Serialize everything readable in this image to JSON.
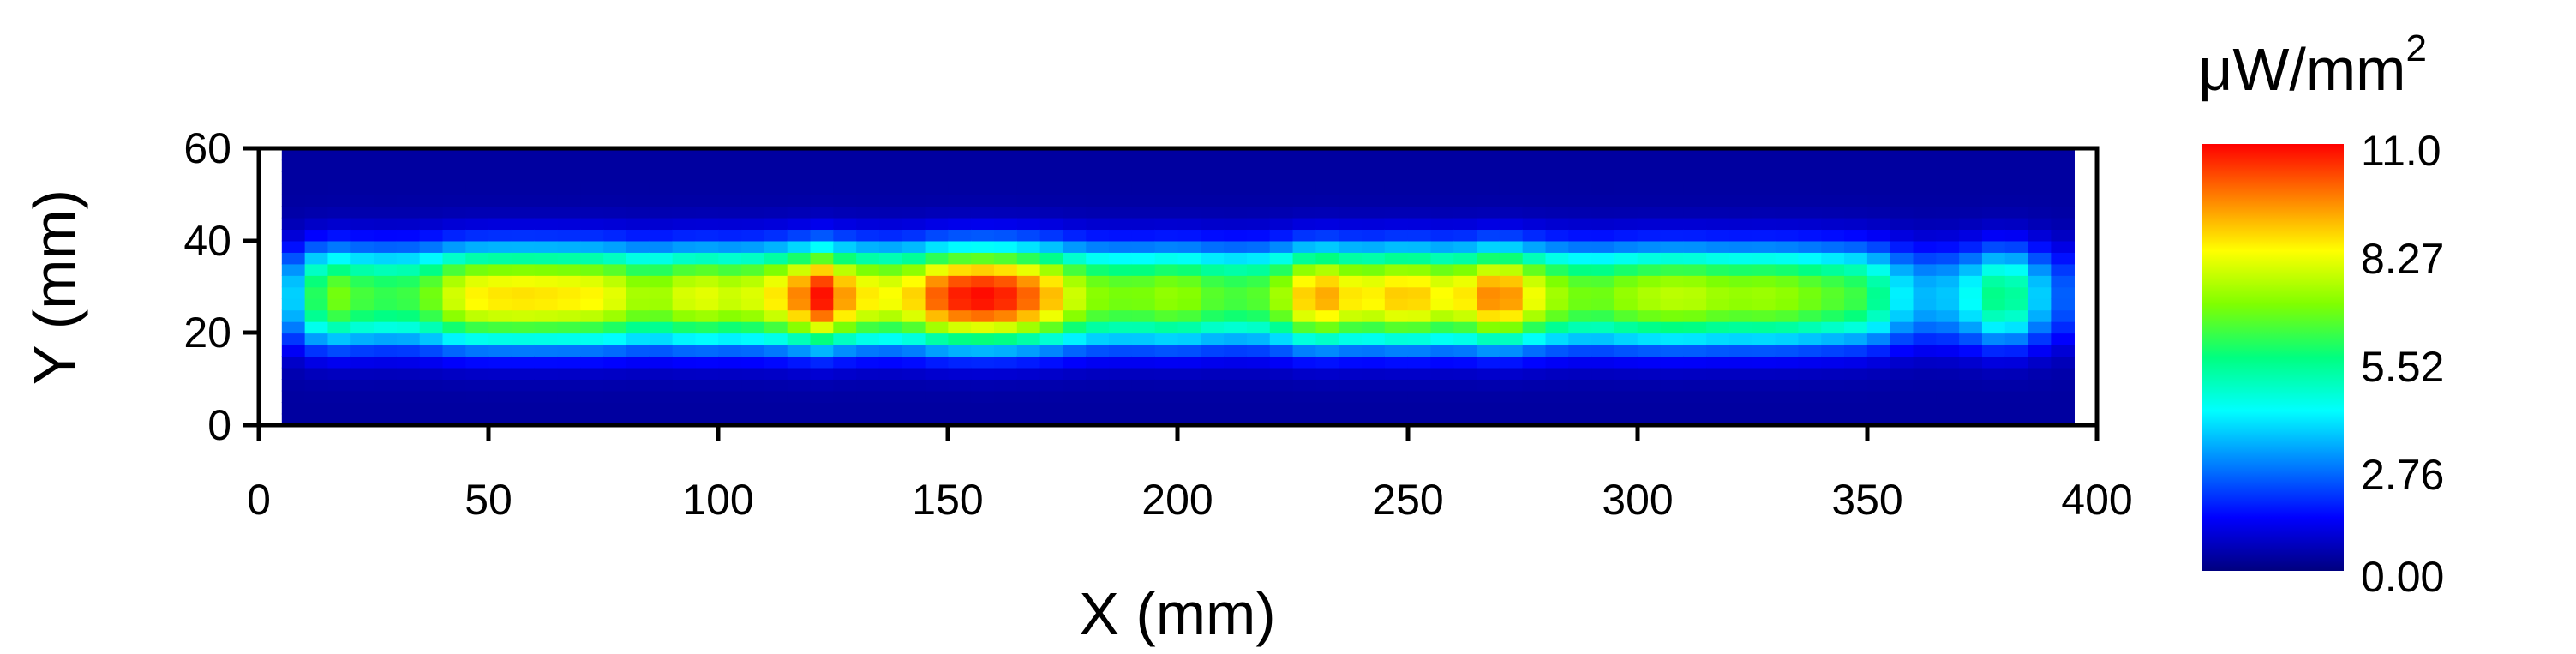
{
  "chart_data": {
    "type": "heatmap",
    "title": "",
    "xlabel": "X (mm)",
    "ylabel": "Y (mm)",
    "xlim": [
      0,
      400
    ],
    "ylim": [
      0,
      60
    ],
    "x_ticks": [
      "0",
      "50",
      "100",
      "150",
      "200",
      "250",
      "300",
      "350",
      "400"
    ],
    "y_ticks": [
      "0",
      "20",
      "40",
      "60"
    ],
    "colorbar": {
      "unit_base": "μW/mm",
      "unit_exponent": "2",
      "min": 0.0,
      "max": 11.0,
      "tick_labels": [
        "0.00",
        "2.76",
        "5.52",
        "8.27",
        "11.0"
      ]
    },
    "x_range_data": [
      5,
      395
    ],
    "y_range_data": [
      0,
      60
    ],
    "profile_x": [
      5,
      15,
      25,
      35,
      45,
      55,
      65,
      75,
      85,
      95,
      105,
      115,
      122,
      130,
      140,
      150,
      160,
      170,
      180,
      190,
      200,
      210,
      220,
      230,
      240,
      250,
      260,
      270,
      280,
      290,
      300,
      310,
      320,
      330,
      340,
      350,
      360,
      370,
      380,
      390,
      395
    ],
    "peak_values": [
      2.5,
      7.0,
      6.0,
      6.2,
      8.3,
      8.6,
      8.5,
      8.3,
      7.0,
      8.1,
      7.6,
      8.8,
      11.0,
      8.6,
      8.1,
      10.6,
      11.0,
      9.6,
      7.1,
      6.7,
      7.2,
      6.2,
      6.5,
      9.5,
      8.2,
      9.0,
      8.0,
      10.0,
      7.5,
      6.5,
      7.3,
      7.6,
      7.1,
      7.2,
      6.6,
      6.0,
      3.3,
      3.6,
      6.0,
      2.8,
      2.0
    ],
    "center_y": 28,
    "beam_sigma_y": 8,
    "colors": {
      "scale": [
        "#00007f",
        "#0000ff",
        "#0080ff",
        "#00ffff",
        "#00ff80",
        "#80ff00",
        "#ffff00",
        "#ff8000",
        "#ff0000"
      ],
      "axis": "#000000"
    }
  }
}
